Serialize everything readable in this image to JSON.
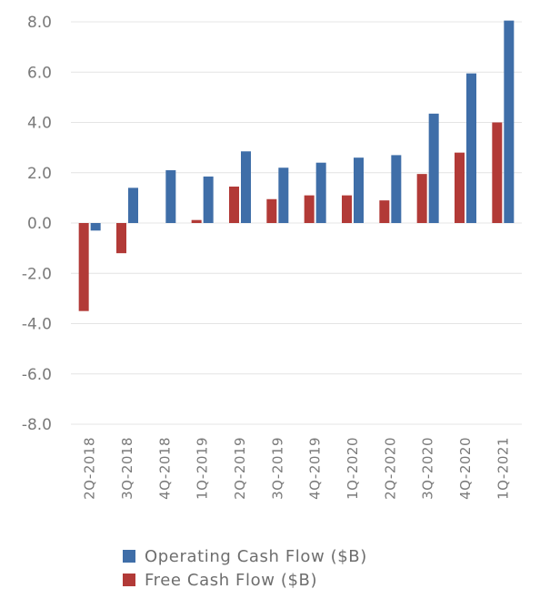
{
  "chart_data": {
    "type": "bar",
    "categories": [
      "2Q-2018",
      "3Q-2018",
      "4Q-2018",
      "1Q-2019",
      "2Q-2019",
      "3Q-2019",
      "4Q-2019",
      "1Q-2020",
      "2Q-2020",
      "3Q-2020",
      "4Q-2020",
      "1Q-2021"
    ],
    "series": [
      {
        "name": "Operating Cash Flow ($B)",
        "color": "#3f6ea8",
        "values": [
          -0.3,
          1.4,
          2.1,
          1.85,
          2.85,
          2.2,
          2.4,
          2.6,
          2.7,
          4.35,
          5.95,
          8.05
        ]
      },
      {
        "name": "Free Cash Flow ($B)",
        "color": "#b23a37",
        "values": [
          -3.5,
          -1.2,
          0.0,
          0.12,
          1.45,
          0.95,
          1.1,
          1.1,
          0.9,
          1.95,
          2.8,
          4.0
        ]
      }
    ],
    "yticks": [
      "8.0",
      "6.0",
      "4.0",
      "2.0",
      "0.0",
      "-2.0",
      "-4.0",
      "-6.0",
      "-8.0"
    ],
    "ylim": [
      -8,
      8
    ],
    "grid": true,
    "legend": "bottom"
  }
}
